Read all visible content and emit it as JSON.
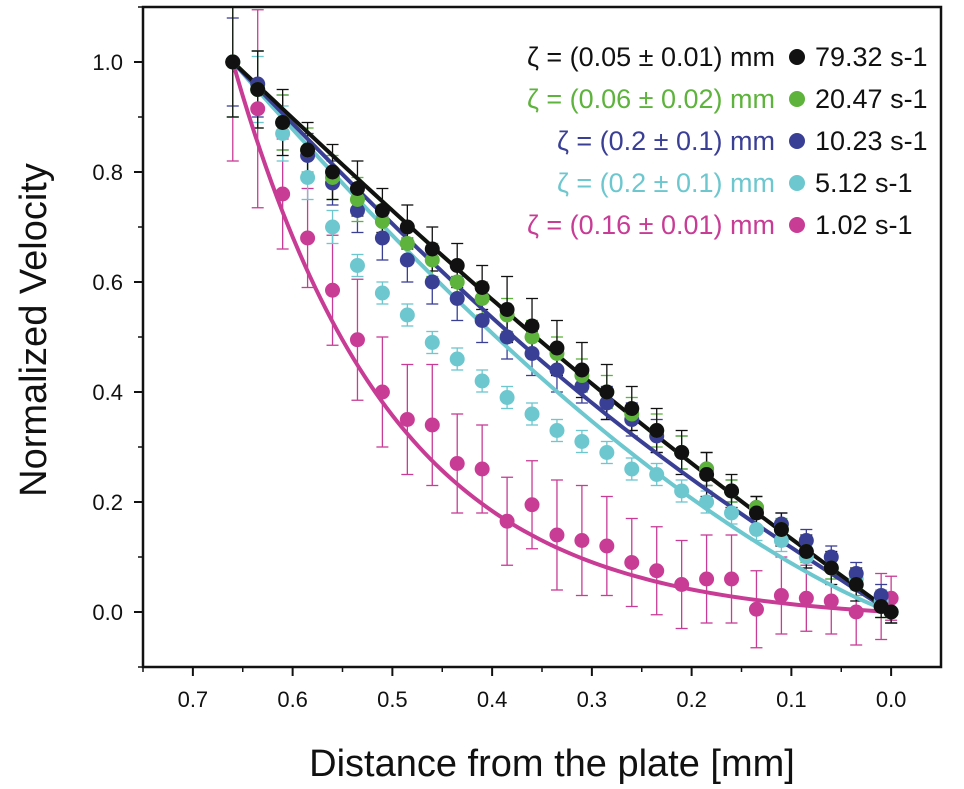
{
  "chart_data": {
    "type": "scatter",
    "title": "",
    "xlabel": "Distance from the plate [mm]",
    "ylabel": "Normalized Velocity",
    "xlim": [
      0.75,
      -0.05
    ],
    "ylim": [
      -0.1,
      1.1
    ],
    "x_reversed": true,
    "grid": false,
    "legend_placement": "top-right",
    "xticks": [
      0.7,
      0.6,
      0.5,
      0.4,
      0.3,
      0.2,
      0.1,
      0.0
    ],
    "xtick_labels": [
      "0.7",
      "0.6",
      "0.5",
      "0.4",
      "0.3",
      "0.2",
      "0.1",
      "0.0"
    ],
    "yticks": [
      0.0,
      0.2,
      0.4,
      0.6,
      0.8,
      1.0
    ],
    "ytick_labels": [
      "0.0",
      "0.2",
      "0.4",
      "0.6",
      "0.8",
      "1.0"
    ],
    "x": [
      0.66,
      0.635,
      0.61,
      0.585,
      0.56,
      0.535,
      0.51,
      0.485,
      0.46,
      0.435,
      0.41,
      0.385,
      0.36,
      0.335,
      0.31,
      0.285,
      0.26,
      0.235,
      0.21,
      0.185,
      0.16,
      0.135,
      0.11,
      0.085,
      0.06,
      0.035,
      0.01,
      0.0
    ],
    "series": [
      {
        "name": "79.32 s-1",
        "zeta_label": "ζ = (0.05 ± 0.01) mm",
        "color": "#111111",
        "values": [
          1.0,
          0.95,
          0.89,
          0.84,
          0.8,
          0.77,
          0.73,
          0.7,
          0.66,
          0.63,
          0.59,
          0.55,
          0.52,
          0.48,
          0.44,
          0.4,
          0.37,
          0.33,
          0.29,
          0.25,
          0.22,
          0.18,
          0.15,
          0.11,
          0.08,
          0.05,
          0.01,
          0.0
        ],
        "errors": [
          0.1,
          0.07,
          0.06,
          0.05,
          0.05,
          0.05,
          0.04,
          0.04,
          0.04,
          0.04,
          0.04,
          0.06,
          0.05,
          0.05,
          0.05,
          0.05,
          0.04,
          0.04,
          0.04,
          0.04,
          0.03,
          0.03,
          0.03,
          0.03,
          0.03,
          0.03,
          0.02,
          0.02
        ]
      },
      {
        "name": "20.47 s-1",
        "zeta_label": "ζ = (0.06 ± 0.02) mm",
        "color": "#5db33b",
        "values": [
          1.0,
          0.95,
          0.89,
          0.84,
          0.79,
          0.75,
          0.71,
          0.67,
          0.64,
          0.6,
          0.57,
          0.54,
          0.5,
          0.47,
          0.43,
          0.4,
          0.36,
          0.33,
          0.29,
          0.26,
          0.22,
          0.19,
          0.15,
          0.11,
          0.08,
          0.05,
          0.01,
          0.0
        ],
        "errors": [
          0.1,
          0.07,
          0.05,
          0.04,
          0.04,
          0.04,
          0.03,
          0.03,
          0.03,
          0.03,
          0.03,
          0.03,
          0.03,
          0.03,
          0.03,
          0.03,
          0.03,
          0.03,
          0.03,
          0.03,
          0.02,
          0.02,
          0.02,
          0.02,
          0.02,
          0.02,
          0.02,
          0.02
        ]
      },
      {
        "name": "10.23 s-1",
        "zeta_label": "ζ = (0.2 ± 0.1) mm",
        "color": "#3a3f96",
        "values": [
          1.0,
          0.96,
          0.89,
          0.83,
          0.78,
          0.73,
          0.68,
          0.64,
          0.6,
          0.57,
          0.53,
          0.5,
          0.47,
          0.44,
          0.41,
          0.38,
          0.35,
          0.32,
          0.29,
          0.26,
          0.22,
          0.19,
          0.16,
          0.13,
          0.1,
          0.07,
          0.03,
          0.0
        ],
        "errors": [
          0.08,
          0.06,
          0.05,
          0.04,
          0.04,
          0.04,
          0.04,
          0.04,
          0.04,
          0.04,
          0.04,
          0.04,
          0.04,
          0.04,
          0.03,
          0.03,
          0.03,
          0.03,
          0.03,
          0.03,
          0.02,
          0.02,
          0.02,
          0.02,
          0.02,
          0.02,
          0.02,
          0.02
        ]
      },
      {
        "name": "5.12 s-1",
        "zeta_label": "ζ = (0.2 ± 0.1) mm",
        "color": "#6cc7cf",
        "values": [
          1.0,
          0.95,
          0.87,
          0.79,
          0.7,
          0.63,
          0.58,
          0.54,
          0.49,
          0.46,
          0.42,
          0.39,
          0.36,
          0.33,
          0.31,
          0.29,
          0.26,
          0.25,
          0.22,
          0.2,
          0.18,
          0.15,
          0.13,
          0.1,
          0.08,
          0.06,
          0.02,
          0.0
        ],
        "errors": [
          0.1,
          0.06,
          0.05,
          0.04,
          0.03,
          0.02,
          0.02,
          0.02,
          0.02,
          0.02,
          0.02,
          0.02,
          0.02,
          0.02,
          0.02,
          0.02,
          0.02,
          0.02,
          0.02,
          0.02,
          0.02,
          0.02,
          0.02,
          0.02,
          0.02,
          0.02,
          0.02,
          0.02
        ]
      },
      {
        "name": "1.02 s-1",
        "zeta_label": "ζ = (0.16 ± 0.01) mm",
        "color": "#c83c96",
        "values": [
          1.0,
          0.915,
          0.76,
          0.68,
          0.585,
          0.495,
          0.4,
          0.35,
          0.34,
          0.27,
          0.26,
          0.165,
          0.195,
          0.14,
          0.13,
          0.12,
          0.09,
          0.075,
          0.05,
          0.06,
          0.06,
          0.005,
          0.03,
          0.025,
          0.02,
          0.0,
          0.01,
          0.025
        ],
        "errors": [
          0.18,
          0.18,
          0.1,
          0.09,
          0.1,
          0.11,
          0.1,
          0.1,
          0.11,
          0.09,
          0.08,
          0.08,
          0.08,
          0.1,
          0.1,
          0.09,
          0.08,
          0.08,
          0.08,
          0.08,
          0.08,
          0.07,
          0.07,
          0.06,
          0.06,
          0.06,
          0.06,
          0.04
        ]
      }
    ],
    "fit_curves": [
      {
        "color": "#111111",
        "zeta": 0.05
      },
      {
        "color": "#5db33b",
        "zeta": 0.06
      },
      {
        "color": "#3a3f96",
        "zeta": 0.2
      },
      {
        "color": "#6cc7cf",
        "zeta": 0.2
      },
      {
        "color": "#c83c96",
        "zeta": 0.16
      }
    ]
  }
}
